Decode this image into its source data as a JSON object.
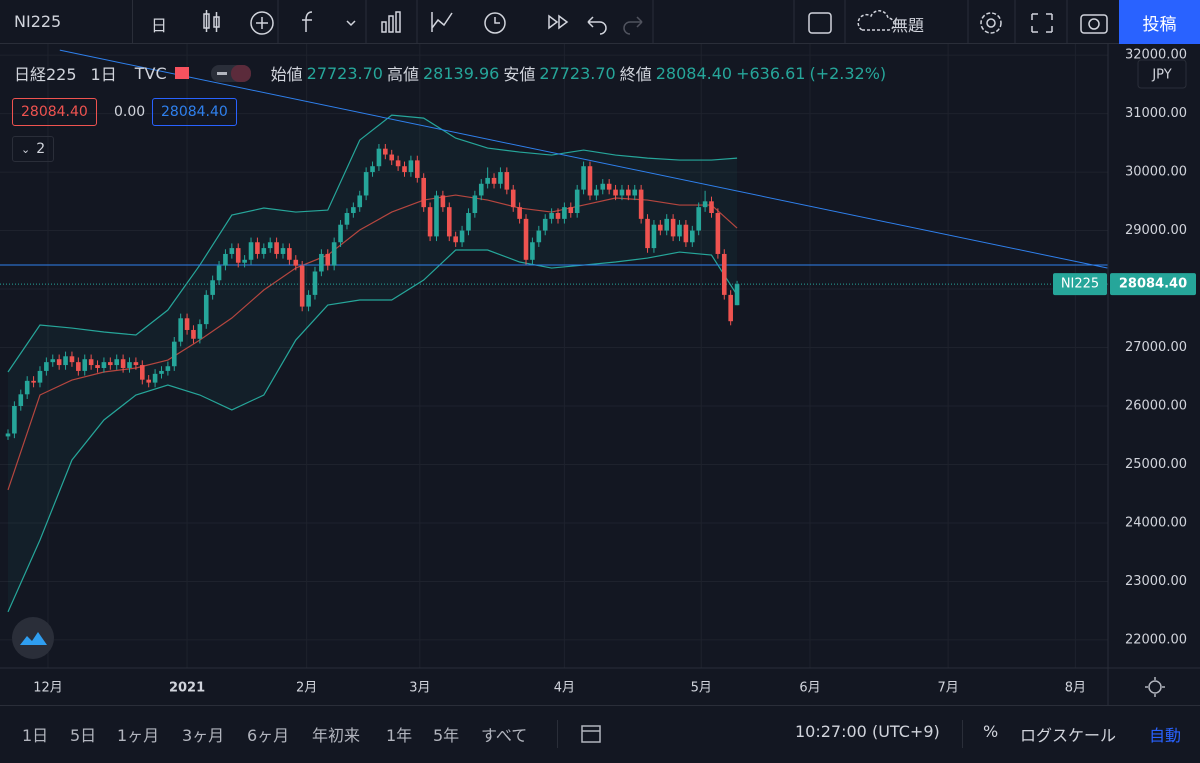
{
  "toolbar": {
    "symbol": "NI225",
    "interval": "日",
    "layout_name": "無題",
    "publish": "投稿"
  },
  "legend": {
    "symbol": "日経225",
    "interval": "1日",
    "source": "TVC",
    "open_label": "始値",
    "open": "27723.70",
    "high_label": "高値",
    "high": "28139.96",
    "low_label": "安値",
    "low": "27723.70",
    "close_label": "終値",
    "close": "28084.40",
    "change": "+636.61",
    "change_pct": "(+2.32%)"
  },
  "price_boxes": {
    "bid": "28084.40",
    "spread": "0.00",
    "ask": "28084.40"
  },
  "indicators_count": "2",
  "currency": "JPY",
  "chart_data": {
    "type": "candlestick",
    "up_color": "#26a69a",
    "down_color": "#ef5350",
    "grid": true,
    "xlim": [
      -1.25,
      172
    ],
    "ylim": [
      21520,
      32190
    ],
    "xticks": [
      {
        "value": 6.25,
        "label": "12月"
      },
      {
        "value": 28,
        "label": "2021"
      },
      {
        "value": 46.7,
        "label": "2月"
      },
      {
        "value": 64.4,
        "label": "3月"
      },
      {
        "value": 87,
        "label": "4月"
      },
      {
        "value": 108.4,
        "label": "5月"
      },
      {
        "value": 125.4,
        "label": "6月"
      },
      {
        "value": 147,
        "label": "7月"
      },
      {
        "value": 166.9,
        "label": "8月"
      }
    ],
    "yticks": [
      {
        "value": 22000,
        "label": "22000.00"
      },
      {
        "value": 23000,
        "label": "23000.00"
      },
      {
        "value": 24000,
        "label": "24000.00"
      },
      {
        "value": 25000,
        "label": "25000.00"
      },
      {
        "value": 26000,
        "label": "26000.00"
      },
      {
        "value": 27000,
        "label": "27000.00"
      },
      {
        "value": 28000,
        "label": "28000.00"
      },
      {
        "value": 29000,
        "label": "29000.00"
      },
      {
        "value": 30000,
        "label": "30000.00"
      },
      {
        "value": 31000,
        "label": "31000.00"
      },
      {
        "value": 32000,
        "label": "32000.00"
      }
    ],
    "candles": [
      [
        25480,
        25600,
        25420,
        25530
      ],
      [
        25530,
        26080,
        25450,
        26000
      ],
      [
        26000,
        26280,
        25920,
        26200
      ],
      [
        26200,
        26510,
        26120,
        26430
      ],
      [
        26430,
        26510,
        26320,
        26400
      ],
      [
        26400,
        26680,
        26320,
        26600
      ],
      [
        26600,
        26830,
        26520,
        26750
      ],
      [
        26750,
        26880,
        26670,
        26800
      ],
      [
        26800,
        26880,
        26620,
        26700
      ],
      [
        26700,
        26930,
        26620,
        26850
      ],
      [
        26850,
        26930,
        26670,
        26750
      ],
      [
        26750,
        26830,
        26520,
        26600
      ],
      [
        26600,
        26880,
        26520,
        26800
      ],
      [
        26800,
        26880,
        26620,
        26700
      ],
      [
        26700,
        26780,
        26570,
        26650
      ],
      [
        26650,
        26830,
        26570,
        26750
      ],
      [
        26750,
        26830,
        26620,
        26700
      ],
      [
        26700,
        26880,
        26620,
        26800
      ],
      [
        26800,
        26880,
        26570,
        26650
      ],
      [
        26650,
        26830,
        26570,
        26750
      ],
      [
        26750,
        26830,
        26620,
        26700
      ],
      [
        26700,
        26780,
        26370,
        26450
      ],
      [
        26450,
        26530,
        26320,
        26400
      ],
      [
        26400,
        26630,
        26320,
        26550
      ],
      [
        26550,
        26680,
        26470,
        26600
      ],
      [
        26600,
        26760,
        26520,
        26680
      ],
      [
        26680,
        27180,
        26600,
        27100
      ],
      [
        27100,
        27580,
        27020,
        27500
      ],
      [
        27500,
        27580,
        27220,
        27300
      ],
      [
        27300,
        27380,
        27070,
        27150
      ],
      [
        27150,
        27480,
        27070,
        27400
      ],
      [
        27400,
        27980,
        27320,
        27900
      ],
      [
        27900,
        28230,
        27820,
        28150
      ],
      [
        28150,
        28480,
        28070,
        28400
      ],
      [
        28400,
        28680,
        28320,
        28600
      ],
      [
        28600,
        28780,
        28520,
        28700
      ],
      [
        28700,
        28780,
        28370,
        28450
      ],
      [
        28450,
        28580,
        28370,
        28500
      ],
      [
        28500,
        28880,
        28420,
        28800
      ],
      [
        28800,
        28880,
        28520,
        28600
      ],
      [
        28600,
        28780,
        28520,
        28700
      ],
      [
        28700,
        28880,
        28620,
        28800
      ],
      [
        28800,
        28880,
        28520,
        28600
      ],
      [
        28600,
        28780,
        28520,
        28700
      ],
      [
        28700,
        28780,
        28420,
        28500
      ],
      [
        28500,
        28580,
        28320,
        28400
      ],
      [
        28400,
        28480,
        27620,
        27700
      ],
      [
        27700,
        27980,
        27620,
        27900
      ],
      [
        27900,
        28380,
        27820,
        28300
      ],
      [
        28300,
        28680,
        28220,
        28600
      ],
      [
        28600,
        28680,
        28320,
        28400
      ],
      [
        28400,
        28880,
        28320,
        28800
      ],
      [
        28800,
        29180,
        28720,
        29100
      ],
      [
        29100,
        29380,
        29020,
        29300
      ],
      [
        29300,
        29480,
        29220,
        29400
      ],
      [
        29400,
        29680,
        29320,
        29600
      ],
      [
        29600,
        30080,
        29520,
        30000
      ],
      [
        30000,
        30180,
        29920,
        30100
      ],
      [
        30100,
        30480,
        30020,
        30400
      ],
      [
        30400,
        30480,
        30220,
        30300
      ],
      [
        30300,
        30380,
        30120,
        30200
      ],
      [
        30200,
        30280,
        30020,
        30100
      ],
      [
        30100,
        30180,
        29920,
        30000
      ],
      [
        30000,
        30280,
        29920,
        30200
      ],
      [
        30200,
        30280,
        29820,
        29900
      ],
      [
        29900,
        29980,
        29320,
        29400
      ],
      [
        29400,
        29480,
        28820,
        28900
      ],
      [
        28900,
        29680,
        28820,
        29600
      ],
      [
        29600,
        29680,
        29320,
        29400
      ],
      [
        29400,
        29480,
        28820,
        28900
      ],
      [
        28900,
        28980,
        28720,
        28800
      ],
      [
        28800,
        29080,
        28720,
        29000
      ],
      [
        29000,
        29380,
        28920,
        29300
      ],
      [
        29300,
        29680,
        29220,
        29600
      ],
      [
        29600,
        29880,
        29520,
        29800
      ],
      [
        29800,
        30080,
        29720,
        29900
      ],
      [
        29900,
        29980,
        29720,
        29800
      ],
      [
        29800,
        30080,
        29720,
        30000
      ],
      [
        30000,
        30080,
        29620,
        29700
      ],
      [
        29700,
        29780,
        29320,
        29400
      ],
      [
        29400,
        29480,
        29120,
        29200
      ],
      [
        29200,
        29280,
        28420,
        28500
      ],
      [
        28500,
        28880,
        28420,
        28800
      ],
      [
        28800,
        29080,
        28720,
        29000
      ],
      [
        29000,
        29280,
        28920,
        29200
      ],
      [
        29200,
        29380,
        29120,
        29300
      ],
      [
        29300,
        29380,
        29120,
        29200
      ],
      [
        29200,
        29480,
        29120,
        29400
      ],
      [
        29400,
        29480,
        29220,
        29300
      ],
      [
        29300,
        29780,
        29220,
        29700
      ],
      [
        29700,
        30180,
        29620,
        30100
      ],
      [
        30100,
        30180,
        29520,
        29600
      ],
      [
        29600,
        29780,
        29520,
        29700
      ],
      [
        29700,
        29880,
        29620,
        29800
      ],
      [
        29800,
        29880,
        29620,
        29700
      ],
      [
        29700,
        29780,
        29520,
        29600
      ],
      [
        29600,
        29780,
        29520,
        29700
      ],
      [
        29700,
        29780,
        29520,
        29600
      ],
      [
        29600,
        29780,
        29520,
        29700
      ],
      [
        29700,
        29780,
        29120,
        29200
      ],
      [
        29200,
        29280,
        28620,
        28700
      ],
      [
        28700,
        29180,
        28620,
        29100
      ],
      [
        29100,
        29180,
        28920,
        29000
      ],
      [
        29000,
        29280,
        28920,
        29200
      ],
      [
        29200,
        29280,
        28820,
        28900
      ],
      [
        28900,
        29180,
        28820,
        29100
      ],
      [
        29100,
        29180,
        28720,
        28800
      ],
      [
        28800,
        29080,
        28720,
        29000
      ],
      [
        29000,
        29480,
        28920,
        29400
      ],
      [
        29400,
        29680,
        29320,
        29500
      ],
      [
        29500,
        29580,
        29220,
        29300
      ],
      [
        29300,
        29380,
        28520,
        28600
      ],
      [
        28600,
        28680,
        27820,
        27900
      ],
      [
        27900,
        27980,
        27380,
        27450
      ],
      [
        27723.7,
        28139.96,
        27723.7,
        28084.4
      ]
    ],
    "bands": {
      "color": "#26a69a",
      "middle_color": "#b5463f",
      "x": [
        0,
        5,
        10,
        15,
        20,
        25,
        30,
        35,
        40,
        45,
        50,
        55,
        60,
        65,
        70,
        75,
        80,
        85,
        90,
        95,
        100,
        105,
        110,
        114
      ],
      "upper": [
        26581,
        27385,
        27333,
        27265,
        27214,
        27641,
        28410,
        29265,
        29385,
        29316,
        29350,
        30547,
        30974,
        30923,
        30581,
        30410,
        30342,
        30291,
        30376,
        30291,
        30239,
        30205,
        30205,
        30239
      ],
      "middle": [
        24564,
        26188,
        26444,
        26581,
        26650,
        26786,
        27128,
        27504,
        27983,
        28359,
        28581,
        29009,
        29316,
        29521,
        29607,
        29521,
        29385,
        29316,
        29436,
        29556,
        29521,
        29436,
        29436,
        29043
      ],
      "lower": [
        22479,
        23709,
        25077,
        25761,
        26188,
        26359,
        26188,
        25932,
        26188,
        27128,
        27726,
        27812,
        27812,
        28154,
        28667,
        28667,
        28462,
        28359,
        28410,
        28462,
        28530,
        28632,
        28581,
        27897
      ]
    },
    "trendline": {
      "color": "#2f80ed",
      "x": [
        8.1,
        171.9
      ],
      "y": [
        32085,
        28359
      ]
    },
    "hline": {
      "color": "#2f80ed",
      "y": 28410
    },
    "last_price": {
      "name": "NI225",
      "label": "28084.40"
    }
  },
  "bottom_bar": {
    "ranges": [
      "1日",
      "5日",
      "1ヶ月",
      "3ヶ月",
      "6ヶ月",
      "年初来",
      "1年",
      "5年",
      "すべて"
    ],
    "time": "10:27:00 (UTC+9)",
    "percent": "%",
    "log": "ログスケール",
    "auto": "自動"
  }
}
